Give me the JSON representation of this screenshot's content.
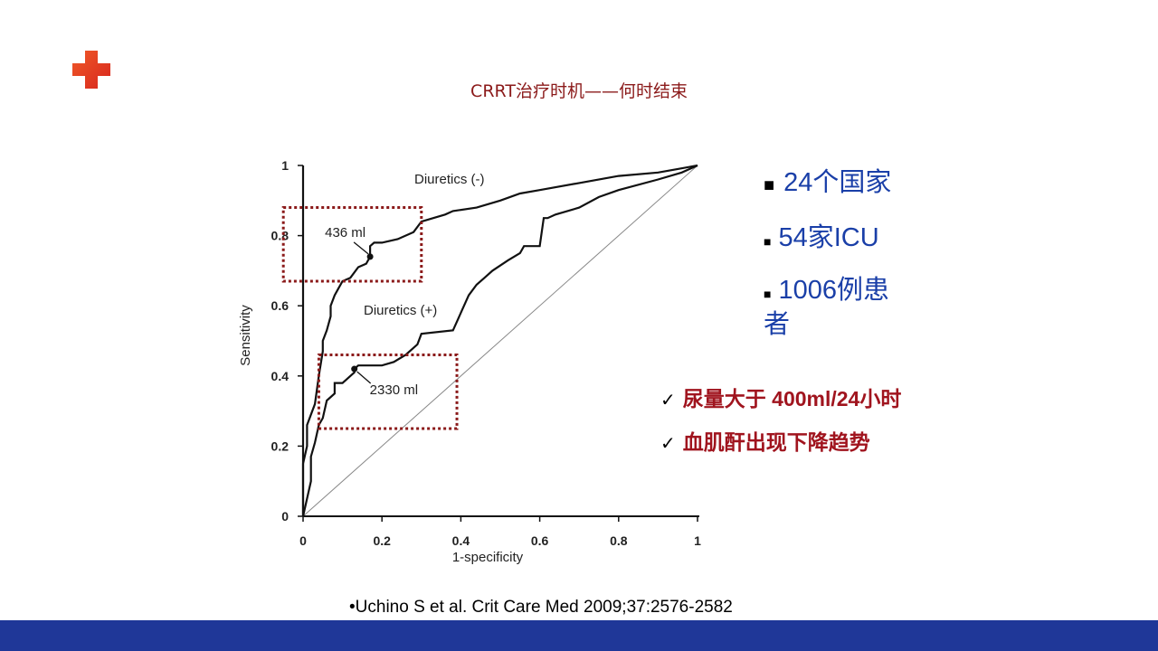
{
  "slide": {
    "title": "CRRT治疗时机——何时结束",
    "bullets": [
      "24个国家",
      "54家ICU",
      "1006例患",
      "者"
    ],
    "checks": [
      "尿量大于 400ml/24小时",
      "血肌酐出现下降趋势"
    ],
    "check_glyph": "✓",
    "bullet_glyph": "■",
    "citation": "•Uchino S et al. Crit Care Med 2009;37:2576-2582",
    "colors": {
      "title": "#8b1a1a",
      "bullets": "#1a3fa8",
      "checks": "#a0141e",
      "footer": "#1f3798",
      "box": "#8b1a1a"
    }
  },
  "chart_data": {
    "type": "line",
    "xlabel": "1-specificity",
    "ylabel": "Sensitivity",
    "xlim": [
      0,
      1
    ],
    "ylim": [
      0,
      1
    ],
    "x_ticks": [
      "0",
      "0.2",
      "0.4",
      "0.6",
      "0.8",
      "1"
    ],
    "y_ticks": [
      "0",
      "0.2",
      "0.4",
      "0.6",
      "0.8",
      "1"
    ],
    "grid": false,
    "series": [
      {
        "name": "Diuretics (-)",
        "x": [
          0,
          0,
          0.01,
          0.01,
          0.03,
          0.04,
          0.05,
          0.05,
          0.06,
          0.07,
          0.07,
          0.08,
          0.09,
          0.1,
          0.12,
          0.14,
          0.16,
          0.17,
          0.17,
          0.18,
          0.2,
          0.24,
          0.28,
          0.3,
          0.33,
          0.36,
          0.38,
          0.44,
          0.5,
          0.55,
          0.6,
          0.7,
          0.8,
          0.9,
          0.95,
          1
        ],
        "y": [
          0,
          0.15,
          0.2,
          0.26,
          0.32,
          0.4,
          0.47,
          0.5,
          0.53,
          0.57,
          0.6,
          0.63,
          0.65,
          0.67,
          0.68,
          0.71,
          0.72,
          0.74,
          0.77,
          0.78,
          0.78,
          0.79,
          0.81,
          0.84,
          0.85,
          0.86,
          0.87,
          0.88,
          0.9,
          0.92,
          0.93,
          0.95,
          0.97,
          0.98,
          0.99,
          1
        ]
      },
      {
        "name": "Diuretics (+)",
        "x": [
          0,
          0.02,
          0.02,
          0.03,
          0.04,
          0.05,
          0.06,
          0.08,
          0.08,
          0.1,
          0.11,
          0.12,
          0.13,
          0.13,
          0.14,
          0.2,
          0.23,
          0.26,
          0.29,
          0.3,
          0.38,
          0.42,
          0.44,
          0.46,
          0.48,
          0.52,
          0.55,
          0.56,
          0.6,
          0.61,
          0.62,
          0.64,
          0.7,
          0.75,
          0.8,
          0.9,
          0.96,
          1
        ],
        "y": [
          0,
          0.1,
          0.17,
          0.21,
          0.26,
          0.28,
          0.33,
          0.35,
          0.38,
          0.38,
          0.39,
          0.4,
          0.41,
          0.42,
          0.43,
          0.43,
          0.44,
          0.46,
          0.49,
          0.52,
          0.53,
          0.63,
          0.66,
          0.68,
          0.7,
          0.73,
          0.75,
          0.77,
          0.77,
          0.85,
          0.85,
          0.86,
          0.88,
          0.91,
          0.93,
          0.96,
          0.98,
          1
        ]
      },
      {
        "name": "reference",
        "x": [
          0,
          1
        ],
        "y": [
          0,
          1
        ]
      }
    ],
    "annotations": [
      {
        "text": "436 ml",
        "x": 0.17,
        "y": 0.74,
        "series": "Diuretics (-)"
      },
      {
        "text": "2330 ml",
        "x": 0.13,
        "y": 0.42,
        "series": "Diuretics (+)"
      }
    ],
    "highlight_boxes": [
      {
        "x0": -0.05,
        "x1": 0.3,
        "y0": 0.67,
        "y1": 0.88
      },
      {
        "x0": 0.04,
        "x1": 0.39,
        "y0": 0.25,
        "y1": 0.46
      }
    ]
  }
}
